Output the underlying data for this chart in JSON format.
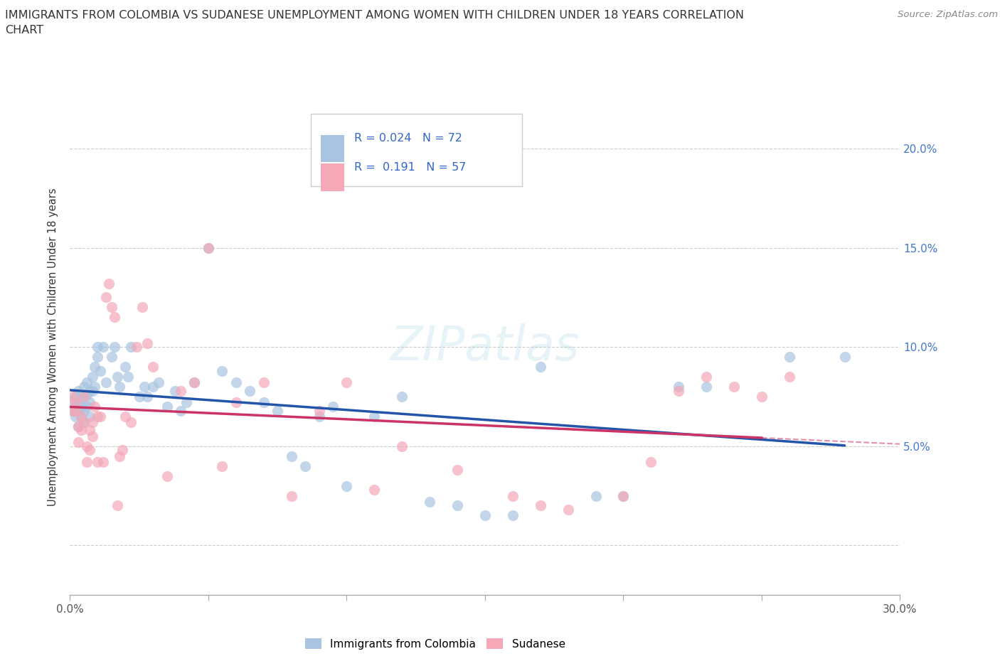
{
  "title_line1": "IMMIGRANTS FROM COLOMBIA VS SUDANESE UNEMPLOYMENT AMONG WOMEN WITH CHILDREN UNDER 18 YEARS CORRELATION",
  "title_line2": "CHART",
  "source": "Source: ZipAtlas.com",
  "ylabel": "Unemployment Among Women with Children Under 18 years",
  "xlim": [
    0.0,
    0.3
  ],
  "ylim": [
    -0.025,
    0.225
  ],
  "x_ticks": [
    0.0,
    0.05,
    0.1,
    0.15,
    0.2,
    0.25,
    0.3
  ],
  "x_tick_labels": [
    "0.0%",
    "",
    "",
    "",
    "",
    "",
    "30.0%"
  ],
  "y_ticks": [
    0.0,
    0.05,
    0.1,
    0.15,
    0.2
  ],
  "y_tick_labels_right": [
    "",
    "5.0%",
    "10.0%",
    "15.0%",
    "20.0%"
  ],
  "colombia_color": "#a8c4e0",
  "sudanese_color": "#f4a8b8",
  "colombia_line_color": "#2255aa",
  "sudanese_line_color": "#cc3366",
  "R_colombia": 0.024,
  "N_colombia": 72,
  "R_sudanese": 0.191,
  "N_sudanese": 57,
  "colombia_x": [
    0.001,
    0.001,
    0.002,
    0.002,
    0.002,
    0.003,
    0.003,
    0.003,
    0.003,
    0.004,
    0.004,
    0.004,
    0.005,
    0.005,
    0.005,
    0.005,
    0.006,
    0.006,
    0.006,
    0.007,
    0.007,
    0.007,
    0.008,
    0.008,
    0.009,
    0.009,
    0.01,
    0.01,
    0.011,
    0.012,
    0.013,
    0.015,
    0.016,
    0.017,
    0.018,
    0.02,
    0.021,
    0.022,
    0.025,
    0.027,
    0.028,
    0.03,
    0.032,
    0.035,
    0.038,
    0.04,
    0.042,
    0.045,
    0.05,
    0.055,
    0.06,
    0.065,
    0.07,
    0.075,
    0.08,
    0.085,
    0.09,
    0.095,
    0.1,
    0.11,
    0.12,
    0.13,
    0.14,
    0.15,
    0.16,
    0.17,
    0.19,
    0.2,
    0.22,
    0.23,
    0.26,
    0.28
  ],
  "colombia_y": [
    0.073,
    0.068,
    0.075,
    0.07,
    0.065,
    0.078,
    0.072,
    0.068,
    0.06,
    0.075,
    0.07,
    0.065,
    0.08,
    0.075,
    0.068,
    0.062,
    0.082,
    0.076,
    0.07,
    0.078,
    0.072,
    0.065,
    0.085,
    0.078,
    0.09,
    0.08,
    0.1,
    0.095,
    0.088,
    0.1,
    0.082,
    0.095,
    0.1,
    0.085,
    0.08,
    0.09,
    0.085,
    0.1,
    0.075,
    0.08,
    0.075,
    0.08,
    0.082,
    0.07,
    0.078,
    0.068,
    0.072,
    0.082,
    0.15,
    0.088,
    0.082,
    0.078,
    0.072,
    0.068,
    0.045,
    0.04,
    0.065,
    0.07,
    0.03,
    0.065,
    0.075,
    0.022,
    0.02,
    0.015,
    0.015,
    0.09,
    0.025,
    0.025,
    0.08,
    0.08,
    0.095,
    0.095
  ],
  "sudanese_x": [
    0.001,
    0.001,
    0.002,
    0.002,
    0.003,
    0.003,
    0.004,
    0.004,
    0.005,
    0.005,
    0.006,
    0.006,
    0.007,
    0.007,
    0.008,
    0.008,
    0.009,
    0.01,
    0.01,
    0.011,
    0.012,
    0.013,
    0.014,
    0.015,
    0.016,
    0.017,
    0.018,
    0.019,
    0.02,
    0.022,
    0.024,
    0.026,
    0.028,
    0.03,
    0.035,
    0.04,
    0.045,
    0.05,
    0.055,
    0.06,
    0.07,
    0.08,
    0.09,
    0.1,
    0.11,
    0.12,
    0.14,
    0.16,
    0.17,
    0.18,
    0.2,
    0.21,
    0.22,
    0.23,
    0.24,
    0.25,
    0.26
  ],
  "sudanese_y": [
    0.075,
    0.068,
    0.072,
    0.068,
    0.06,
    0.052,
    0.065,
    0.058,
    0.075,
    0.062,
    0.05,
    0.042,
    0.058,
    0.048,
    0.062,
    0.055,
    0.07,
    0.065,
    0.042,
    0.065,
    0.042,
    0.125,
    0.132,
    0.12,
    0.115,
    0.02,
    0.045,
    0.048,
    0.065,
    0.062,
    0.1,
    0.12,
    0.102,
    0.09,
    0.035,
    0.078,
    0.082,
    0.15,
    0.04,
    0.072,
    0.082,
    0.025,
    0.068,
    0.082,
    0.028,
    0.05,
    0.038,
    0.025,
    0.02,
    0.018,
    0.025,
    0.042,
    0.078,
    0.085,
    0.08,
    0.075,
    0.085
  ]
}
